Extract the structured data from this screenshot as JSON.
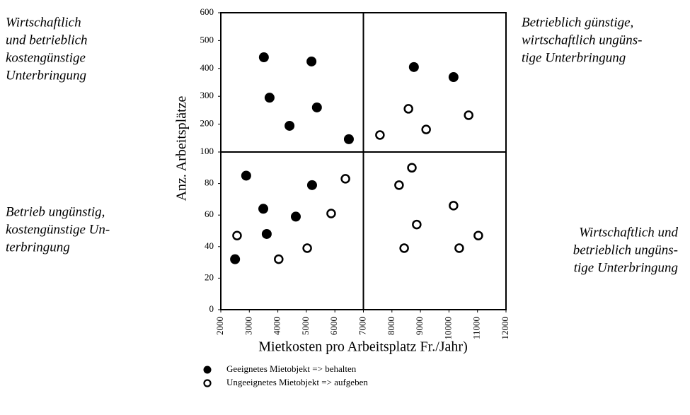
{
  "chart_data": {
    "type": "scatter",
    "x_label": "Mietkosten pro Arbeitsplatz Fr./Jahr)",
    "y_label": "Anz. Arbeitsplätze",
    "xlim": [
      2000,
      12000
    ],
    "xticks": [
      2000,
      3000,
      4000,
      5000,
      6000,
      7000,
      8000,
      9000,
      10000,
      11000,
      12000
    ],
    "ylim": [
      0,
      600
    ],
    "yticks": [
      0,
      20,
      40,
      60,
      80,
      100,
      200,
      300,
      400,
      500,
      600
    ],
    "quadrant_lines": {
      "x": 7000,
      "y": 100
    },
    "series": [
      {
        "name": "Geeignetes Mietobjekt => behalten",
        "color": "#000000",
        "marker": "filled",
        "x": [
          3510,
          3710,
          4410,
          5180,
          5370,
          6490,
          8770,
          10160,
          2890,
          5200,
          3490,
          4630,
          3610,
          2500
        ],
        "values": [
          440,
          295,
          194,
          425,
          260,
          146,
          405,
          369,
          85,
          79,
          64,
          59,
          48,
          32
        ]
      },
      {
        "name": "Ungeeignetes Mietobjekt => aufgeben",
        "color": "#000000",
        "marker": "open",
        "x": [
          7580,
          8580,
          9200,
          10690,
          2570,
          4030,
          5030,
          5870,
          6370,
          8250,
          8700,
          8430,
          8870,
          10160,
          10360,
          11030
        ],
        "values": [
          161,
          255,
          181,
          232,
          47,
          32,
          39,
          61,
          83,
          79,
          90,
          39,
          54,
          66,
          39,
          47
        ]
      }
    ],
    "annotations": [
      {
        "lines": [
          "Wirtschaftlich",
          "und betrieblich",
          "kostengünstige",
          "Unterbringung"
        ]
      },
      {
        "lines": [
          "Betrieblich günstige,",
          "wirtschaftlich ungüns-",
          "tige Unterbringung"
        ]
      },
      {
        "lines": [
          "Betrieb ungünstig,",
          "kostengünstige Un-",
          "terbringung"
        ]
      },
      {
        "lines": [
          "Wirtschaftlich und",
          "betrieblich ungüns-",
          "tige Unterbringung"
        ]
      }
    ]
  }
}
